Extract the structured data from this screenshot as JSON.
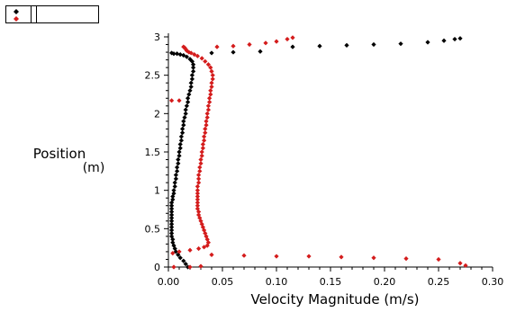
{
  "colors": {
    "series_a": "#000000",
    "series_b": "#d41c1c",
    "axis": "#000000"
  },
  "chart_data": {
    "type": "scatter",
    "title": "",
    "xlabel": "Velocity Magnitude (m/s)",
    "ylabel": "Position",
    "ylabel_unit": "(m)",
    "xlim": [
      0,
      0.3
    ],
    "ylim": [
      0,
      3
    ],
    "x_ticks": [
      {
        "v": 0.0,
        "label": "0.00"
      },
      {
        "v": 0.05,
        "label": "0.05"
      },
      {
        "v": 0.1,
        "label": "0.10"
      },
      {
        "v": 0.15,
        "label": "0.15"
      },
      {
        "v": 0.2,
        "label": "0.20"
      },
      {
        "v": 0.25,
        "label": "0.25"
      },
      {
        "v": 0.3,
        "label": "0.30"
      }
    ],
    "y_ticks": [
      {
        "v": 0,
        "label": "0"
      },
      {
        "v": 0.5,
        "label": "0.5"
      },
      {
        "v": 1,
        "label": "1"
      },
      {
        "v": 1.5,
        "label": "1.5"
      },
      {
        "v": 2,
        "label": "2"
      },
      {
        "v": 2.5,
        "label": "2.5"
      },
      {
        "v": 3,
        "label": "3"
      }
    ],
    "grid": false,
    "legend_position": "top-left",
    "series": [
      {
        "color": "#000000",
        "points": [
          [
            0.018,
            0.0
          ],
          [
            0.016,
            0.04
          ],
          [
            0.014,
            0.08
          ],
          [
            0.011,
            0.12
          ],
          [
            0.009,
            0.16
          ],
          [
            0.007,
            0.2
          ],
          [
            0.006,
            0.24
          ],
          [
            0.005,
            0.28
          ],
          [
            0.004,
            0.32
          ],
          [
            0.004,
            0.36
          ],
          [
            0.003,
            0.4
          ],
          [
            0.003,
            0.44
          ],
          [
            0.003,
            0.48
          ],
          [
            0.003,
            0.52
          ],
          [
            0.003,
            0.56
          ],
          [
            0.003,
            0.6
          ],
          [
            0.003,
            0.64
          ],
          [
            0.003,
            0.68
          ],
          [
            0.003,
            0.72
          ],
          [
            0.003,
            0.76
          ],
          [
            0.003,
            0.8
          ],
          [
            0.003,
            0.84
          ],
          [
            0.004,
            0.88
          ],
          [
            0.004,
            0.92
          ],
          [
            0.005,
            0.96
          ],
          [
            0.005,
            1.0
          ],
          [
            0.006,
            1.05
          ],
          [
            0.006,
            1.1
          ],
          [
            0.007,
            1.15
          ],
          [
            0.007,
            1.2
          ],
          [
            0.008,
            1.25
          ],
          [
            0.008,
            1.3
          ],
          [
            0.009,
            1.35
          ],
          [
            0.009,
            1.4
          ],
          [
            0.01,
            1.45
          ],
          [
            0.01,
            1.5
          ],
          [
            0.011,
            1.55
          ],
          [
            0.011,
            1.6
          ],
          [
            0.012,
            1.65
          ],
          [
            0.012,
            1.7
          ],
          [
            0.013,
            1.75
          ],
          [
            0.013,
            1.8
          ],
          [
            0.014,
            1.85
          ],
          [
            0.014,
            1.9
          ],
          [
            0.015,
            1.95
          ],
          [
            0.016,
            2.0
          ],
          [
            0.016,
            2.05
          ],
          [
            0.017,
            2.1
          ],
          [
            0.018,
            2.15
          ],
          [
            0.018,
            2.2
          ],
          [
            0.019,
            2.25
          ],
          [
            0.02,
            2.3
          ],
          [
            0.021,
            2.35
          ],
          [
            0.021,
            2.4
          ],
          [
            0.022,
            2.45
          ],
          [
            0.022,
            2.5
          ],
          [
            0.023,
            2.55
          ],
          [
            0.023,
            2.6
          ],
          [
            0.023,
            2.64
          ],
          [
            0.022,
            2.68
          ],
          [
            0.02,
            2.71
          ],
          [
            0.017,
            2.74
          ],
          [
            0.014,
            2.76
          ],
          [
            0.011,
            2.77
          ],
          [
            0.008,
            2.78
          ],
          [
            0.005,
            2.78
          ],
          [
            0.003,
            2.79
          ],
          [
            0.04,
            2.79
          ],
          [
            0.06,
            2.8
          ],
          [
            0.085,
            2.81
          ],
          [
            0.115,
            2.87
          ],
          [
            0.14,
            2.88
          ],
          [
            0.165,
            2.89
          ],
          [
            0.19,
            2.9
          ],
          [
            0.215,
            2.91
          ],
          [
            0.24,
            2.93
          ],
          [
            0.255,
            2.95
          ],
          [
            0.265,
            2.97
          ],
          [
            0.27,
            2.98
          ]
        ]
      },
      {
        "color": "#d41c1c",
        "points": [
          [
            0.005,
            0.0
          ],
          [
            0.02,
            0.0
          ],
          [
            0.03,
            0.01
          ],
          [
            0.004,
            0.18
          ],
          [
            0.01,
            0.2
          ],
          [
            0.02,
            0.22
          ],
          [
            0.028,
            0.24
          ],
          [
            0.033,
            0.26
          ],
          [
            0.036,
            0.28
          ],
          [
            0.037,
            0.32
          ],
          [
            0.036,
            0.36
          ],
          [
            0.035,
            0.4
          ],
          [
            0.034,
            0.44
          ],
          [
            0.033,
            0.48
          ],
          [
            0.032,
            0.52
          ],
          [
            0.031,
            0.56
          ],
          [
            0.03,
            0.6
          ],
          [
            0.029,
            0.64
          ],
          [
            0.028,
            0.68
          ],
          [
            0.028,
            0.72
          ],
          [
            0.027,
            0.76
          ],
          [
            0.027,
            0.8
          ],
          [
            0.027,
            0.84
          ],
          [
            0.027,
            0.88
          ],
          [
            0.027,
            0.92
          ],
          [
            0.027,
            0.96
          ],
          [
            0.027,
            1.0
          ],
          [
            0.027,
            1.05
          ],
          [
            0.028,
            1.1
          ],
          [
            0.028,
            1.15
          ],
          [
            0.028,
            1.2
          ],
          [
            0.029,
            1.25
          ],
          [
            0.029,
            1.3
          ],
          [
            0.03,
            1.35
          ],
          [
            0.03,
            1.4
          ],
          [
            0.031,
            1.45
          ],
          [
            0.031,
            1.5
          ],
          [
            0.032,
            1.55
          ],
          [
            0.032,
            1.6
          ],
          [
            0.033,
            1.65
          ],
          [
            0.033,
            1.7
          ],
          [
            0.034,
            1.75
          ],
          [
            0.034,
            1.8
          ],
          [
            0.035,
            1.85
          ],
          [
            0.035,
            1.9
          ],
          [
            0.036,
            1.95
          ],
          [
            0.036,
            2.0
          ],
          [
            0.037,
            2.05
          ],
          [
            0.037,
            2.1
          ],
          [
            0.038,
            2.15
          ],
          [
            0.038,
            2.2
          ],
          [
            0.039,
            2.25
          ],
          [
            0.039,
            2.3
          ],
          [
            0.04,
            2.35
          ],
          [
            0.04,
            2.4
          ],
          [
            0.041,
            2.45
          ],
          [
            0.041,
            2.5
          ],
          [
            0.04,
            2.55
          ],
          [
            0.039,
            2.6
          ],
          [
            0.037,
            2.64
          ],
          [
            0.034,
            2.68
          ],
          [
            0.031,
            2.72
          ],
          [
            0.027,
            2.75
          ],
          [
            0.024,
            2.77
          ],
          [
            0.021,
            2.79
          ],
          [
            0.019,
            2.8
          ],
          [
            0.017,
            2.82
          ],
          [
            0.016,
            2.84
          ],
          [
            0.015,
            2.86
          ],
          [
            0.014,
            2.87
          ],
          [
            0.01,
            2.17
          ],
          [
            0.003,
            2.17
          ],
          [
            0.04,
            0.16
          ],
          [
            0.07,
            0.15
          ],
          [
            0.1,
            0.14
          ],
          [
            0.13,
            0.14
          ],
          [
            0.16,
            0.13
          ],
          [
            0.19,
            0.12
          ],
          [
            0.22,
            0.11
          ],
          [
            0.25,
            0.1
          ],
          [
            0.27,
            0.05
          ],
          [
            0.275,
            0.02
          ],
          [
            0.045,
            2.87
          ],
          [
            0.06,
            2.88
          ],
          [
            0.075,
            2.9
          ],
          [
            0.09,
            2.92
          ],
          [
            0.1,
            2.94
          ],
          [
            0.11,
            2.97
          ],
          [
            0.115,
            2.99
          ]
        ]
      }
    ]
  }
}
